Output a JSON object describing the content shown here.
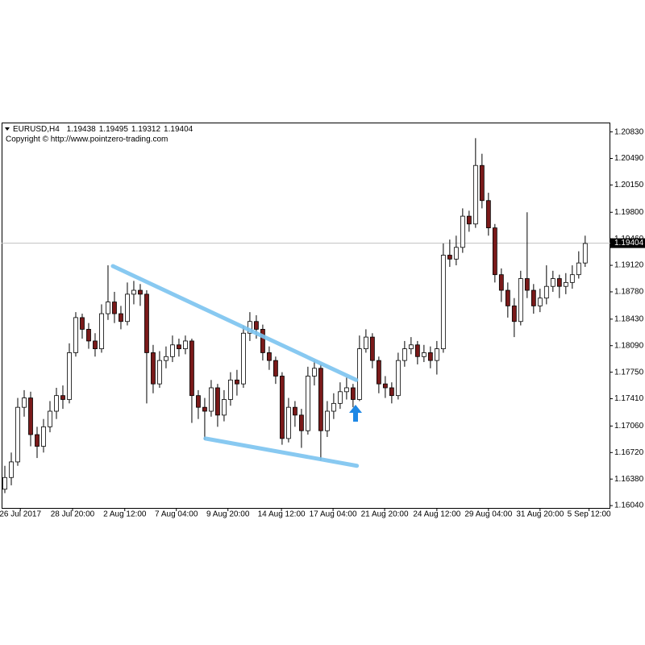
{
  "chart_data": {
    "type": "candlestick",
    "title": "EURUSD,H4",
    "header_values": [
      1.19438,
      1.19495,
      1.19312,
      1.19404
    ],
    "subtitle": "Copyright © http://www.pointzero-trading.com",
    "up_color": "#ffffff",
    "down_color": "#7a1a1a",
    "wick_color": "#000000",
    "open": [
      1.1625,
      1.164,
      1.166,
      1.173,
      1.1742,
      1.1695,
      1.168,
      1.1705,
      1.1725,
      1.1745,
      1.174,
      1.18,
      1.1845,
      1.183,
      1.1815,
      1.1805,
      1.185,
      1.1865,
      1.185,
      1.184,
      1.1875,
      1.188,
      1.1875,
      1.18,
      1.176,
      1.179,
      1.1795,
      1.181,
      1.1805,
      1.1815,
      1.1745,
      1.173,
      1.1725,
      1.1755,
      1.172,
      1.174,
      1.1765,
      1.176,
      1.1825,
      1.184,
      1.183,
      1.18,
      1.179,
      1.177,
      1.169,
      1.173,
      1.172,
      1.17,
      1.177,
      1.178,
      1.17,
      1.1725,
      1.1735,
      1.175,
      1.1755,
      1.174,
      1.1805,
      1.182,
      1.179,
      1.176,
      1.1755,
      1.1745,
      1.179,
      1.1805,
      1.181,
      1.1795,
      1.18,
      1.179,
      1.1805,
      1.1925,
      1.192,
      1.1935,
      1.1975,
      1.1965,
      1.204,
      1.1995,
      1.196,
      1.19,
      1.188,
      1.186,
      1.184,
      1.1895,
      1.188,
      1.186,
      1.187,
      1.1885,
      1.1895,
      1.1885,
      1.189,
      1.19,
      1.1915
    ],
    "high": [
      1.1655,
      1.1672,
      1.1742,
      1.1752,
      1.175,
      1.1705,
      1.1715,
      1.1738,
      1.1755,
      1.1758,
      1.1812,
      1.1852,
      1.185,
      1.1838,
      1.1825,
      1.1862,
      1.1912,
      1.1878,
      1.186,
      1.189,
      1.1892,
      1.1888,
      1.188,
      1.181,
      1.1802,
      1.1808,
      1.1822,
      1.1818,
      1.1822,
      1.1818,
      1.1752,
      1.1742,
      1.1765,
      1.176,
      1.1752,
      1.1775,
      1.1778,
      1.1835,
      1.1852,
      1.1848,
      1.1836,
      1.1808,
      1.1795,
      1.1775,
      1.1742,
      1.1738,
      1.1728,
      1.1782,
      1.179,
      1.1785,
      1.1738,
      1.1748,
      1.1762,
      1.1768,
      1.176,
      1.1822,
      1.183,
      1.1825,
      1.1795,
      1.177,
      1.1762,
      1.18,
      1.1815,
      1.182,
      1.1815,
      1.181,
      1.1808,
      1.1815,
      1.194,
      1.1945,
      1.195,
      1.1985,
      1.1982,
      1.2075,
      1.2055,
      1.2005,
      1.1965,
      1.1908,
      1.189,
      1.187,
      1.1905,
      1.198,
      1.1888,
      1.1882,
      1.1912,
      1.1905,
      1.19,
      1.1902,
      1.1912,
      1.193,
      1.195
    ],
    "low": [
      1.162,
      1.163,
      1.1655,
      1.1718,
      1.168,
      1.1665,
      1.1672,
      1.1698,
      1.1715,
      1.1728,
      1.1735,
      1.1795,
      1.1818,
      1.1805,
      1.1795,
      1.18,
      1.1842,
      1.1838,
      1.183,
      1.1835,
      1.1862,
      1.186,
      1.1735,
      1.1748,
      1.1755,
      1.178,
      1.1788,
      1.1795,
      1.1798,
      1.171,
      1.1715,
      1.1688,
      1.1718,
      1.1705,
      1.1712,
      1.1732,
      1.1745,
      1.1755,
      1.1815,
      1.1818,
      1.179,
      1.1778,
      1.176,
      1.1682,
      1.1685,
      1.1705,
      1.1678,
      1.1695,
      1.1758,
      1.1662,
      1.1692,
      1.1715,
      1.1728,
      1.174,
      1.173,
      1.1738,
      1.18,
      1.178,
      1.1748,
      1.1742,
      1.1735,
      1.174,
      1.1782,
      1.1798,
      1.1785,
      1.1788,
      1.178,
      1.1772,
      1.18,
      1.191,
      1.1912,
      1.1928,
      1.1955,
      1.196,
      1.1985,
      1.195,
      1.189,
      1.1865,
      1.1845,
      1.182,
      1.1835,
      1.187,
      1.185,
      1.1852,
      1.1862,
      1.1878,
      1.187,
      1.1875,
      1.1882,
      1.1895,
      1.191
    ],
    "close": [
      1.164,
      1.166,
      1.173,
      1.1742,
      1.1695,
      1.168,
      1.1705,
      1.1725,
      1.1745,
      1.174,
      1.18,
      1.1845,
      1.183,
      1.1815,
      1.1805,
      1.185,
      1.1865,
      1.185,
      1.184,
      1.1875,
      1.188,
      1.1875,
      1.18,
      1.176,
      1.179,
      1.1795,
      1.181,
      1.1805,
      1.1815,
      1.1745,
      1.173,
      1.1725,
      1.1755,
      1.172,
      1.174,
      1.1765,
      1.176,
      1.1825,
      1.184,
      1.183,
      1.18,
      1.179,
      1.177,
      1.169,
      1.173,
      1.172,
      1.17,
      1.177,
      1.178,
      1.17,
      1.1725,
      1.1735,
      1.175,
      1.1755,
      1.174,
      1.1805,
      1.182,
      1.179,
      1.176,
      1.1755,
      1.1745,
      1.179,
      1.1805,
      1.181,
      1.1795,
      1.18,
      1.179,
      1.1805,
      1.1925,
      1.192,
      1.1935,
      1.1975,
      1.1965,
      1.204,
      1.1995,
      1.196,
      1.19,
      1.188,
      1.186,
      1.184,
      1.1895,
      1.188,
      1.186,
      1.187,
      1.1885,
      1.1895,
      1.1885,
      1.189,
      1.19,
      1.1915,
      1.194
    ],
    "xlim": [
      -0.5,
      93.9
    ],
    "xticks": [
      {
        "value": 2.4,
        "label": "26 Jul 2017"
      },
      {
        "value": 10.5,
        "label": "28 Jul 20:00"
      },
      {
        "value": 18.6,
        "label": "2 Aug 12:00"
      },
      {
        "value": 26.6,
        "label": "7 Aug 04:00"
      },
      {
        "value": 34.6,
        "label": "9 Aug 20:00"
      },
      {
        "value": 42.9,
        "label": "14 Aug 12:00"
      },
      {
        "value": 50.9,
        "label": "17 Aug 04:00"
      },
      {
        "value": 58.9,
        "label": "21 Aug 20:00"
      },
      {
        "value": 67,
        "label": "24 Aug 12:00"
      },
      {
        "value": 75,
        "label": "29 Aug 04:00"
      },
      {
        "value": 83,
        "label": "31 Aug 20:00"
      },
      {
        "value": 90.6,
        "label": "5 Sep 12:00"
      }
    ],
    "ylim": [
      1.1601,
      1.2095
    ],
    "yticks": [
      {
        "value": 1.2083,
        "label": "1.20830"
      },
      {
        "value": 1.2049,
        "label": "1.20490"
      },
      {
        "value": 1.2015,
        "label": "1.20150"
      },
      {
        "value": 1.198,
        "label": "1.19800"
      },
      {
        "value": 1.1946,
        "label": "1.19460"
      },
      {
        "value": 1.1912,
        "label": "1.19120"
      },
      {
        "value": 1.1878,
        "label": "1.18780"
      },
      {
        "value": 1.1843,
        "label": "1.18430"
      },
      {
        "value": 1.1809,
        "label": "1.18090"
      },
      {
        "value": 1.1775,
        "label": "1.17750"
      },
      {
        "value": 1.1741,
        "label": "1.17410"
      },
      {
        "value": 1.1706,
        "label": "1.17060"
      },
      {
        "value": 1.1672,
        "label": "1.16720"
      },
      {
        "value": 1.1638,
        "label": "1.16380"
      },
      {
        "value": 1.1604,
        "label": "1.16040"
      }
    ],
    "last_price": 1.19404,
    "trendline_color": "#7cc4f0",
    "trendlines": [
      {
        "x": [
          16.75,
          54.5
        ],
        "y": [
          1.1911,
          1.1765
        ]
      },
      {
        "x": [
          31.1,
          54.6
        ],
        "y": [
          1.169,
          1.1655
        ]
      }
    ]
  }
}
